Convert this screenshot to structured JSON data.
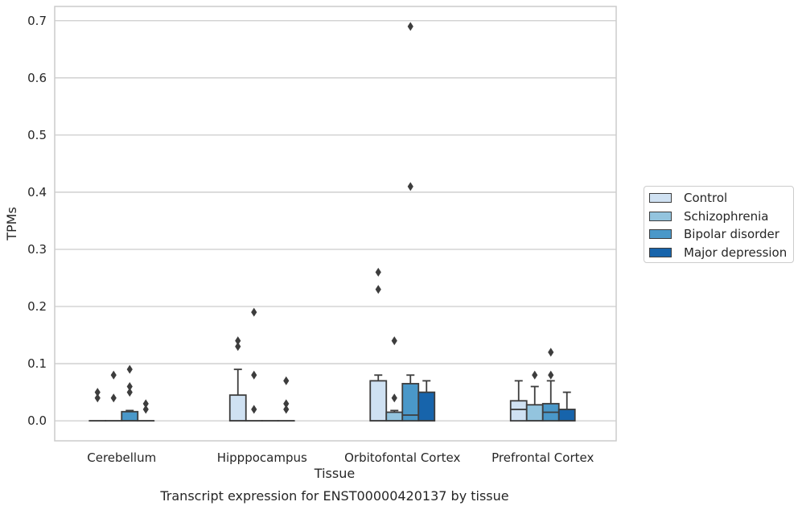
{
  "chart_data": {
    "type": "box",
    "title": "Transcript expression for ENST00000420137 by tissue",
    "xlabel": "Tissue",
    "ylabel": "TPMs",
    "ylim": [
      -0.035,
      0.725
    ],
    "yticks": [
      0.0,
      0.1,
      0.2,
      0.3,
      0.4,
      0.5,
      0.6,
      0.7
    ],
    "ytick_labels": [
      "0.0",
      "0.1",
      "0.2",
      "0.3",
      "0.4",
      "0.5",
      "0.6",
      "0.7"
    ],
    "grid": "horizontal",
    "legend_position": "outside-right",
    "categories": [
      "Cerebellum",
      "Hipppocampus",
      "Orbitofontal Cortex",
      "Prefrontal Cortex"
    ],
    "series": [
      {
        "name": "Control",
        "color": "#cfe1f2",
        "boxes": [
          {
            "q1": 0,
            "median": 0,
            "q3": 0,
            "whisker_low": 0,
            "whisker_high": 0,
            "outliers": [
              0.05,
              0.04
            ]
          },
          {
            "q1": 0,
            "median": 0,
            "q3": 0.045,
            "whisker_low": 0,
            "whisker_high": 0.09,
            "outliers": [
              0.14,
              0.13
            ]
          },
          {
            "q1": 0,
            "median": 0,
            "q3": 0.07,
            "whisker_low": 0,
            "whisker_high": 0.08,
            "outliers": [
              0.26,
              0.23
            ]
          },
          {
            "q1": 0,
            "median": 0.02,
            "q3": 0.035,
            "whisker_low": 0,
            "whisker_high": 0.07,
            "outliers": []
          }
        ]
      },
      {
        "name": "Schizophrenia",
        "color": "#93c4de",
        "boxes": [
          {
            "q1": 0,
            "median": 0,
            "q3": 0,
            "whisker_low": 0,
            "whisker_high": 0,
            "outliers": [
              0.08,
              0.04
            ]
          },
          {
            "q1": 0,
            "median": 0,
            "q3": 0,
            "whisker_low": 0,
            "whisker_high": 0,
            "outliers": [
              0.19,
              0.08,
              0.02
            ]
          },
          {
            "q1": 0,
            "median": 0,
            "q3": 0.015,
            "whisker_low": 0,
            "whisker_high": 0.018,
            "outliers": [
              0.14,
              0.04
            ]
          },
          {
            "q1": 0,
            "median": 0,
            "q3": 0.028,
            "whisker_low": 0,
            "whisker_high": 0.06,
            "outliers": [
              0.08
            ]
          }
        ]
      },
      {
        "name": "Bipolar disorder",
        "color": "#4a98c9",
        "boxes": [
          {
            "q1": 0,
            "median": 0,
            "q3": 0.016,
            "whisker_low": 0,
            "whisker_high": 0.018,
            "outliers": [
              0.09,
              0.06,
              0.05
            ]
          },
          {
            "q1": 0,
            "median": 0,
            "q3": 0,
            "whisker_low": 0,
            "whisker_high": 0,
            "outliers": []
          },
          {
            "q1": 0,
            "median": 0.01,
            "q3": 0.065,
            "whisker_low": 0,
            "whisker_high": 0.08,
            "outliers": [
              0.69,
              0.41
            ]
          },
          {
            "q1": 0,
            "median": 0.015,
            "q3": 0.03,
            "whisker_low": 0,
            "whisker_high": 0.07,
            "outliers": [
              0.12,
              0.08
            ]
          }
        ]
      },
      {
        "name": "Major depression",
        "color": "#1764ab",
        "boxes": [
          {
            "q1": 0,
            "median": 0,
            "q3": 0,
            "whisker_low": 0,
            "whisker_high": 0,
            "outliers": [
              0.03,
              0.02
            ]
          },
          {
            "q1": 0,
            "median": 0,
            "q3": 0,
            "whisker_low": 0,
            "whisker_high": 0,
            "outliers": [
              0.07,
              0.03,
              0.02
            ]
          },
          {
            "q1": 0,
            "median": 0,
            "q3": 0.05,
            "whisker_low": 0,
            "whisker_high": 0.07,
            "outliers": []
          },
          {
            "q1": 0,
            "median": 0,
            "q3": 0.02,
            "whisker_low": 0,
            "whisker_high": 0.05,
            "outliers": []
          }
        ]
      }
    ]
  }
}
